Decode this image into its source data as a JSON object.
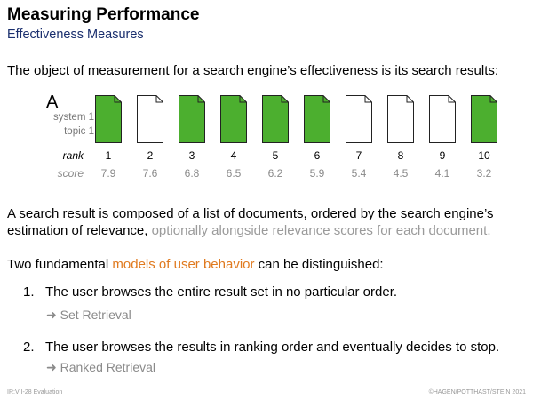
{
  "header": {
    "title": "Measuring Performance",
    "subtitle": "Effectiveness Measures"
  },
  "intro": "The object of measurement for a search engine’s effectiveness is its search results:",
  "ranking": {
    "system_letter": "A",
    "system_label": "system 1",
    "topic_label": "topic 1",
    "rank_label": "rank",
    "score_label": "score",
    "relevant_color": "#4caf2f",
    "nonrelevant_color": "#ffffff",
    "documents": [
      {
        "rank": "1",
        "score": "7.9",
        "relevant": true
      },
      {
        "rank": "2",
        "score": "7.6",
        "relevant": false
      },
      {
        "rank": "3",
        "score": "6.8",
        "relevant": true
      },
      {
        "rank": "4",
        "score": "6.5",
        "relevant": true
      },
      {
        "rank": "5",
        "score": "6.2",
        "relevant": true
      },
      {
        "rank": "6",
        "score": "5.9",
        "relevant": true
      },
      {
        "rank": "7",
        "score": "5.4",
        "relevant": false
      },
      {
        "rank": "8",
        "score": "4.5",
        "relevant": false
      },
      {
        "rank": "9",
        "score": "4.1",
        "relevant": false
      },
      {
        "rank": "10",
        "score": "3.2",
        "relevant": true
      }
    ]
  },
  "para1": {
    "main": "A search result is composed of a list of documents, ordered by the search engine’s estimation of relevance, ",
    "gray": "optionally alongside relevance scores for each document."
  },
  "para2": {
    "before": "Two fundamental ",
    "highlight": "models of user behavior",
    "after": " can be distinguished:"
  },
  "list": [
    {
      "num": "1.",
      "text": "The user browses the entire result set in no particular order.",
      "arrow": "➜ Set Retrieval"
    },
    {
      "num": "2.",
      "text": "The user browses the results in ranking order and eventually decides to stop.",
      "arrow": "➜ Ranked Retrieval"
    }
  ],
  "footer": {
    "left": "IR:VII-28   Evaluation",
    "right": "©HAGEN/POTTHAST/STEIN 2021"
  }
}
